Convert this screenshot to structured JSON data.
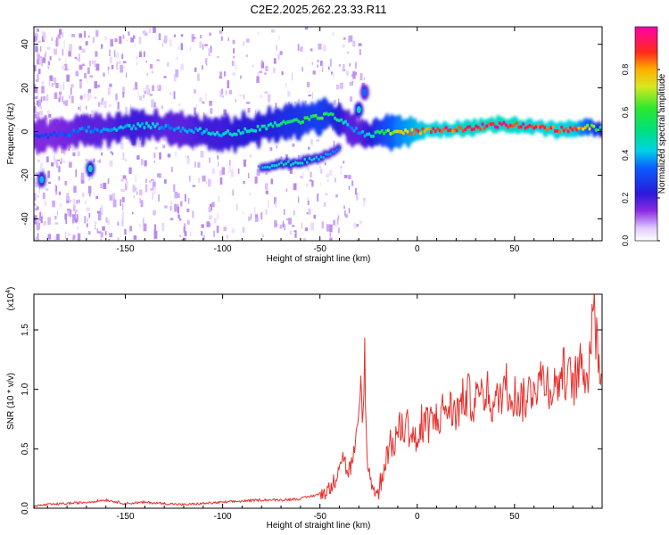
{
  "title": "C2E2.2025.262.23.33.R11",
  "chart_data": [
    {
      "type": "heatmap",
      "xlabel": "Height of straight line (km)",
      "ylabel": "Frequency (Hz)",
      "xlim": [
        -197,
        95
      ],
      "ylim": [
        -50,
        48
      ],
      "xticks": [
        -150,
        -100,
        -50,
        0,
        50
      ],
      "xtick_labels": [
        "-150",
        "-100",
        "-50",
        "0",
        "50"
      ],
      "yticks": [
        -40,
        -20,
        0,
        20,
        40
      ],
      "ytick_labels": [
        "-40",
        "-20",
        "0",
        "20",
        "40"
      ],
      "colorbar": {
        "label": "Normalized spectral amplitude",
        "range": [
          0,
          1
        ],
        "ticks": [
          0.0,
          0.2,
          0.4,
          0.6,
          0.8
        ],
        "tick_labels": [
          "0.0",
          "0.2",
          "0.4",
          "0.6",
          "0.8"
        ]
      },
      "ridge": {
        "x": [
          -195,
          -180,
          -170,
          -160,
          -150,
          -140,
          -130,
          -120,
          -110,
          -100,
          -90,
          -80,
          -70,
          -60,
          -50,
          -45,
          -40,
          -35,
          -30,
          -25,
          -20,
          -10,
          0,
          10,
          20,
          30,
          40,
          50,
          60,
          70,
          80,
          90,
          95
        ],
        "freq": [
          -2,
          -1,
          1,
          0,
          2,
          3,
          2,
          1,
          0,
          -1,
          0,
          2,
          4,
          5,
          7,
          8,
          5,
          2,
          0,
          -2,
          0,
          0,
          0,
          1,
          1,
          2,
          3,
          3,
          2,
          1,
          1,
          2,
          1
        ],
        "amplitude": [
          0.3,
          0.35,
          0.4,
          0.4,
          0.45,
          0.45,
          0.4,
          0.4,
          0.45,
          0.45,
          0.5,
          0.5,
          0.55,
          0.6,
          0.65,
          0.6,
          0.5,
          0.4,
          0.4,
          0.45,
          0.6,
          0.8,
          0.9,
          0.95,
          0.95,
          1.0,
          1.0,
          1.0,
          0.95,
          0.95,
          0.95,
          0.7,
          0.5
        ]
      },
      "secondary_branch": {
        "x": [
          -80,
          -70,
          -60,
          -50,
          -40
        ],
        "freq": [
          -16,
          -15,
          -14,
          -12,
          -8
        ],
        "amplitude": [
          0.4,
          0.45,
          0.45,
          0.4,
          0.35
        ]
      },
      "isolated_features": [
        {
          "x": -193,
          "freq": -22,
          "amplitude": 0.4
        },
        {
          "x": -168,
          "freq": -17,
          "amplitude": 0.45
        },
        {
          "x": -30,
          "freq": 10,
          "amplitude": 0.45
        },
        {
          "x": -27,
          "freq": 18,
          "amplitude": 0.35
        }
      ]
    },
    {
      "type": "line",
      "xlabel": "Height of straight line (km)",
      "ylabel": "SNR (10 * v/v)",
      "yscale_label": "(x10",
      "yscale_exponent": "4",
      "xlim": [
        -197,
        95
      ],
      "ylim": [
        0,
        1.8
      ],
      "xticks": [
        -150,
        -100,
        -50,
        0,
        50
      ],
      "xtick_labels": [
        "-150",
        "-100",
        "-50",
        "0",
        "50"
      ],
      "yticks": [
        0.0,
        0.5,
        1.0,
        1.5
      ],
      "ytick_labels": [
        "0.0",
        "0.5",
        "1.0",
        "1.5"
      ],
      "series": [
        {
          "name": "SNR",
          "color": "#e8302c",
          "x": [
            -197,
            -190,
            -180,
            -170,
            -160,
            -150,
            -140,
            -130,
            -120,
            -110,
            -100,
            -90,
            -80,
            -70,
            -60,
            -55,
            -50,
            -45,
            -42,
            -40,
            -38,
            -36,
            -34,
            -32,
            -30,
            -29,
            -28,
            -27,
            -26,
            -24,
            -22,
            -20,
            -18,
            -15,
            -12,
            -10,
            -5,
            0,
            5,
            10,
            15,
            20,
            25,
            30,
            35,
            40,
            45,
            50,
            55,
            60,
            65,
            70,
            75,
            80,
            85,
            88,
            90,
            93,
            95
          ],
          "y": [
            0.02,
            0.03,
            0.04,
            0.05,
            0.07,
            0.04,
            0.05,
            0.04,
            0.03,
            0.04,
            0.05,
            0.06,
            0.07,
            0.07,
            0.08,
            0.1,
            0.12,
            0.16,
            0.25,
            0.4,
            0.45,
            0.3,
            0.35,
            0.5,
            0.7,
            1.1,
            0.6,
            1.4,
            0.4,
            0.25,
            0.15,
            0.12,
            0.3,
            0.5,
            0.55,
            0.65,
            0.7,
            0.55,
            0.7,
            0.75,
            0.85,
            0.8,
            0.95,
            0.9,
            1.0,
            0.85,
            1.05,
            0.95,
            0.9,
            1.05,
            1.1,
            1.0,
            1.15,
            1.05,
            1.2,
            1.1,
            1.75,
            1.3,
            1.1
          ]
        }
      ]
    }
  ]
}
